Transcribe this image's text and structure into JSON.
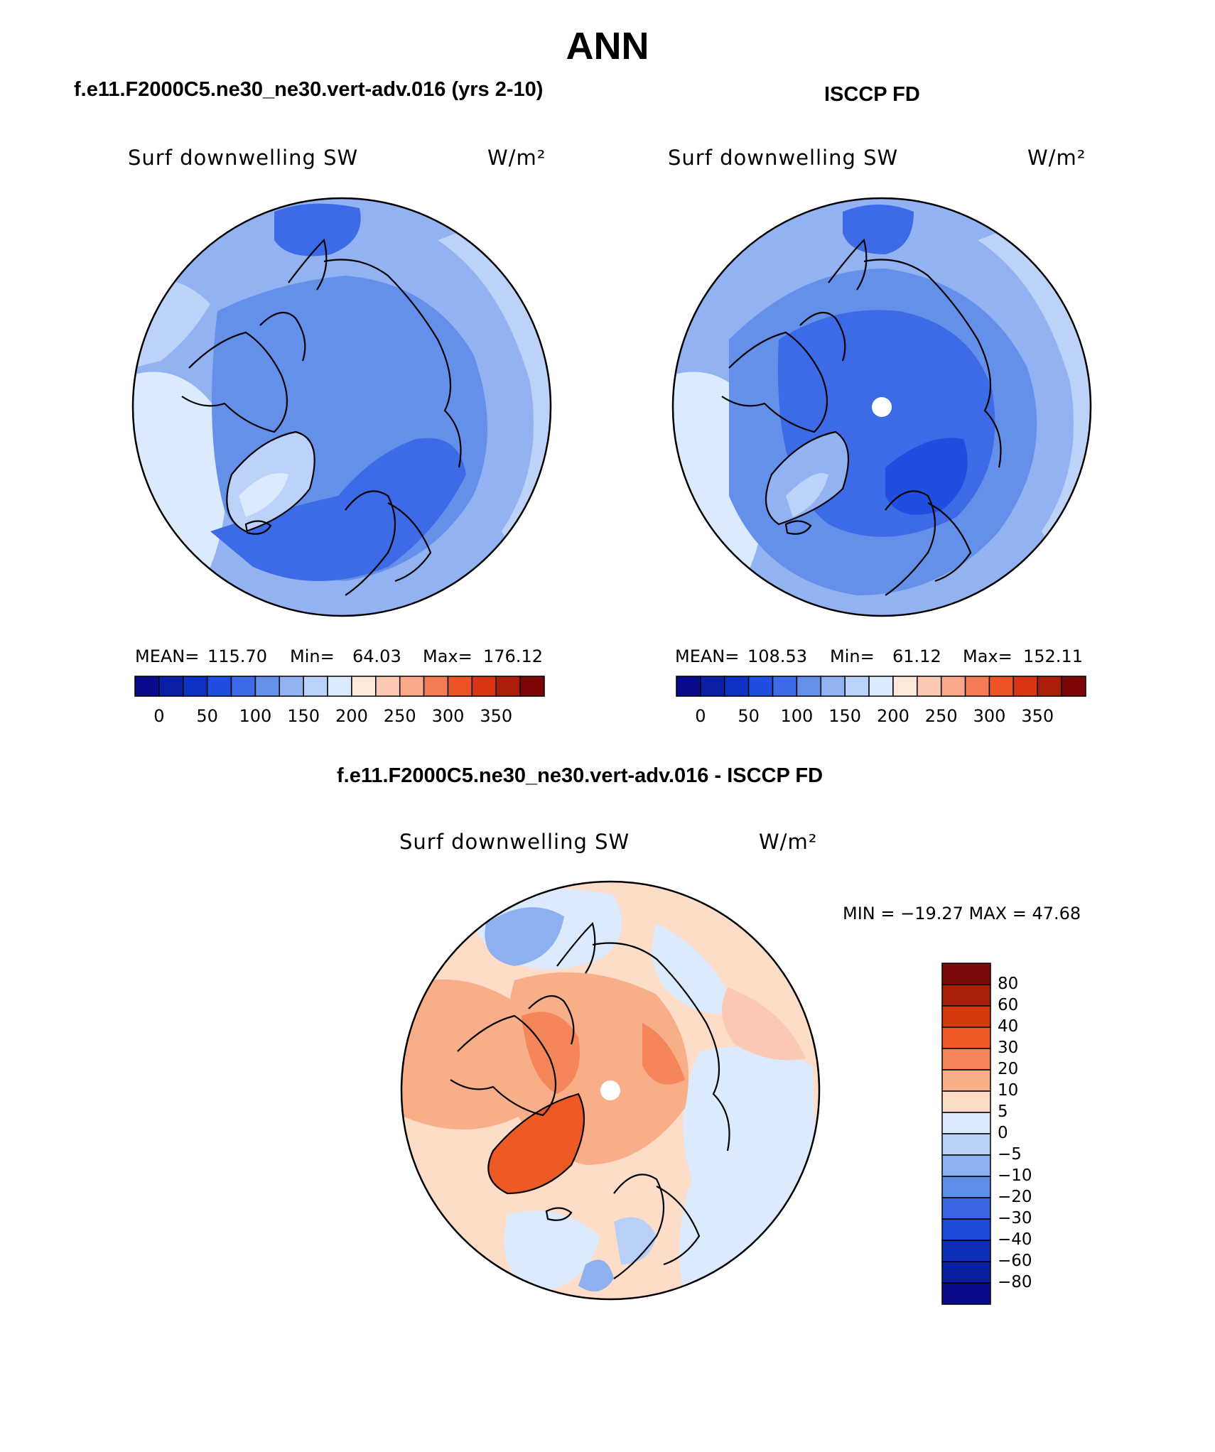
{
  "title": "ANN",
  "panels": [
    {
      "title": "f.e11.F2000C5.ne30_ne30.vert-adv.016 (yrs 2-10)",
      "variable": "Surf downwelling SW",
      "units": "W/m²",
      "stats": {
        "mean_label": "MEAN=",
        "mean": "115.70",
        "min_label": "Min=",
        "min": "64.03",
        "max_label": "Max=",
        "max": "176.12"
      }
    },
    {
      "title": "ISCCP FD",
      "variable": "Surf downwelling SW",
      "units": "W/m²",
      "stats": {
        "mean_label": "MEAN=",
        "mean": "108.53",
        "min_label": "Min=",
        "min": "61.12",
        "max_label": "Max=",
        "max": "152.11"
      }
    }
  ],
  "diff_panel": {
    "title": "f.e11.F2000C5.ne30_ne30.vert-adv.016 - ISCCP FD",
    "variable": "Surf downwelling SW",
    "units": "W/m²",
    "minmax_text": "MIN = −19.27 MAX =   47.68"
  },
  "colorbar_abs": {
    "colors": [
      "#0a0a8c",
      "#0a1ea6",
      "#0d32c4",
      "#1f4ee0",
      "#3d6ae6",
      "#6590ea",
      "#93b2f2",
      "#bdd2f8",
      "#dceafd",
      "#fde9da",
      "#fccab4",
      "#f9a98a",
      "#f47c55",
      "#ec5428",
      "#d93512",
      "#ad1e08",
      "#7c0606"
    ],
    "tick_labels": [
      "0",
      "50",
      "100",
      "150",
      "200",
      "250",
      "300",
      "350"
    ]
  },
  "colorbar_diff": {
    "colors_top_to_bottom": [
      "#7e0a0a",
      "#a8200a",
      "#d43b0c",
      "#ee5a25",
      "#f5865a",
      "#f9ae8a",
      "#fddcc8",
      "#dceafd",
      "#b8d0f6",
      "#8db0f0",
      "#5e8cea",
      "#3a66e6",
      "#1d48d8",
      "#0f2eb8",
      "#0a1ea0",
      "#0a0a88"
    ],
    "tick_labels_top_to_bottom": [
      "80",
      "60",
      "40",
      "30",
      "20",
      "10",
      "5",
      "0",
      "−5",
      "−10",
      "−20",
      "−30",
      "−40",
      "−60",
      "−80"
    ]
  }
}
